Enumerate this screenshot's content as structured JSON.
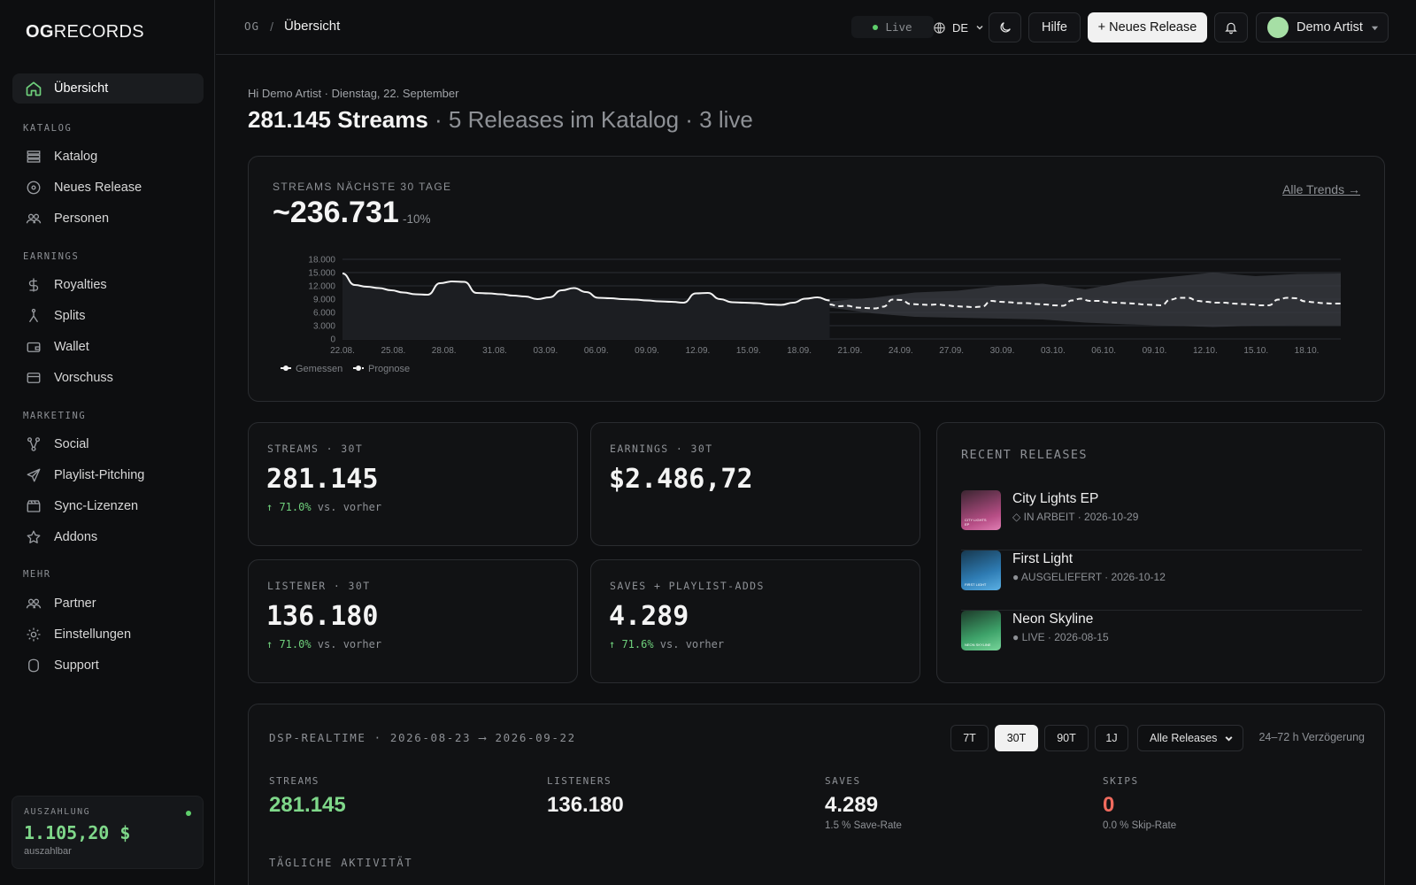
{
  "sidebar": {
    "logo_bold": "OG",
    "logo_light": "RECORDS",
    "active": "Übersicht",
    "sections": [
      {
        "title": "KATALOG",
        "items": [
          "Katalog",
          "Neues Release",
          "Personen"
        ]
      },
      {
        "title": "EARNINGS",
        "items": [
          "Royalties",
          "Splits",
          "Wallet",
          "Vorschuss"
        ]
      },
      {
        "title": "MARKETING",
        "items": [
          "Social",
          "Playlist-Pitching",
          "Sync-Lizenzen",
          "Addons"
        ]
      },
      {
        "title": "MEHR",
        "items": [
          "Partner",
          "Einstellungen",
          "Support"
        ]
      }
    ],
    "payout": {
      "label": "AUSZAHLUNG",
      "amount": "1.105,20 $",
      "sub": "auszahlbar"
    }
  },
  "topbar": {
    "crumb_root": "OG",
    "crumb_sep": "/",
    "crumb_current": "Übersicht",
    "live": "Live",
    "lang": "DE",
    "help": "Hilfe",
    "new_release": "+ Neues Release",
    "user": "Demo Artist"
  },
  "main": {
    "greeting": "Hi Demo Artist · Dienstag, 22. September",
    "headline_bold": "281.145 Streams",
    "headline_rest": " · 5 Releases im Katalog · 3 live"
  },
  "forecast": {
    "label": "STREAMS NÄCHSTE 30 TAGE",
    "value": "~236.731",
    "delta": "-10%",
    "link": "Alle Trends →"
  },
  "stats": [
    {
      "label": "STREAMS · 30T",
      "value": "281.145",
      "change_pct": "↑ 71.0%",
      "change_text": " vs. vorher"
    },
    {
      "label": "EARNINGS · 30T",
      "value": "$2.486,72",
      "change_pct": "",
      "change_text": ""
    },
    {
      "label": "LISTENER · 30T",
      "value": "136.180",
      "change_pct": "↑ 71.0%",
      "change_text": " vs. vorher"
    },
    {
      "label": "SAVES + PLAYLIST-ADDS",
      "value": "4.289",
      "change_pct": "↑ 71.6%",
      "change_text": " vs. vorher"
    }
  ],
  "recent": {
    "title": "RECENT RELEASES",
    "items": [
      {
        "name": "City Lights EP",
        "meta": "◇ IN ARBEIT · 2026-10-29",
        "cover_text": "CITY LIGHTS EP"
      },
      {
        "name": "First Light",
        "meta": "● AUSGELIEFERT · 2026-10-12",
        "cover_text": "FIRST LIGHT"
      },
      {
        "name": "Neon Skyline",
        "meta": "● LIVE · 2026-08-15",
        "cover_text": "NEON SKYLINE"
      }
    ]
  },
  "dsp": {
    "title": "DSP-REALTIME · 2026-08-23 ⟶ 2026-09-22",
    "ranges": [
      "7T",
      "30T",
      "90T",
      "1J"
    ],
    "active_range": "30T",
    "select": "Alle Releases",
    "delay": "24–72 h Verzögerung",
    "metrics": [
      {
        "label": "STREAMS",
        "value": "281.145",
        "sub": "",
        "color": "#7fd88a"
      },
      {
        "label": "LISTENERS",
        "value": "136.180",
        "sub": "",
        "color": "#f2f2f2"
      },
      {
        "label": "SAVES",
        "value": "4.289",
        "sub": "1.5 % Save-Rate",
        "color": "#f2f2f2"
      },
      {
        "label": "SKIPS",
        "value": "0",
        "sub": "0.0 % Skip-Rate",
        "color": "#f06b5e"
      }
    ],
    "daily_title": "TÄGLICHE AKTIVITÄT"
  },
  "chart_data": {
    "type": "line",
    "title": "",
    "xlabel": "",
    "ylabel": "",
    "ylim": [
      0,
      18000
    ],
    "yticks": [
      "18.000",
      "15.000",
      "12.000",
      "9.000",
      "6.000",
      "3.000",
      "0"
    ],
    "xticks": [
      "22.08.",
      "25.08.",
      "28.08.",
      "31.08.",
      "03.09.",
      "06.09.",
      "09.09.",
      "12.09.",
      "15.09.",
      "18.09.",
      "21.09.",
      "24.09.",
      "27.09.",
      "30.09.",
      "03.10.",
      "06.10.",
      "09.10.",
      "12.10.",
      "15.10.",
      "18.10."
    ],
    "legend": [
      "Gemessen",
      "Prognose"
    ],
    "legend_position": "bottom-left",
    "series": [
      {
        "name": "Gemessen",
        "values": [
          14800,
          12200,
          11800,
          11500,
          11000,
          10500,
          10100,
          10000,
          12600,
          13000,
          12900,
          10400,
          10300,
          10100,
          9800,
          9600,
          9000,
          9400,
          11000,
          11500,
          10600,
          9300,
          9200,
          9000,
          8900,
          8700,
          8500,
          8400,
          8200,
          10300,
          10400,
          9000,
          8300,
          8200,
          8100,
          7800,
          7700,
          8200,
          9100,
          9400,
          8700
        ]
      },
      {
        "name": "Prognose",
        "values": [
          7800,
          7400,
          7500,
          7100,
          7000,
          6900,
          7300,
          8900,
          8800,
          7900,
          7800,
          7700,
          7800,
          7600,
          7400,
          7300,
          7200,
          7300,
          8600,
          8400,
          8300,
          8100,
          8100,
          7900,
          7800,
          7600,
          7500,
          8700,
          9100,
          8600,
          8600,
          8300,
          8200,
          8100,
          8000,
          7800,
          7700,
          7600,
          8900,
          9300,
          9300,
          8600,
          8400,
          8200,
          8200,
          8000,
          7900,
          7800,
          7600,
          7600,
          8900,
          9300,
          9200,
          8500,
          8300,
          8100,
          8000,
          8000
        ]
      },
      {
        "name": "Prognose-Band oben",
        "values": [
          8500,
          9300,
          10500,
          10900,
          12000,
          12500,
          11200,
          13000,
          14000,
          15000,
          14200,
          14700,
          14800
        ]
      },
      {
        "name": "Prognose-Band unten",
        "values": [
          7100,
          5800,
          5000,
          4800,
          4600,
          4400,
          3700,
          3300,
          3000,
          2700,
          3000,
          3100,
          3100
        ]
      }
    ]
  }
}
